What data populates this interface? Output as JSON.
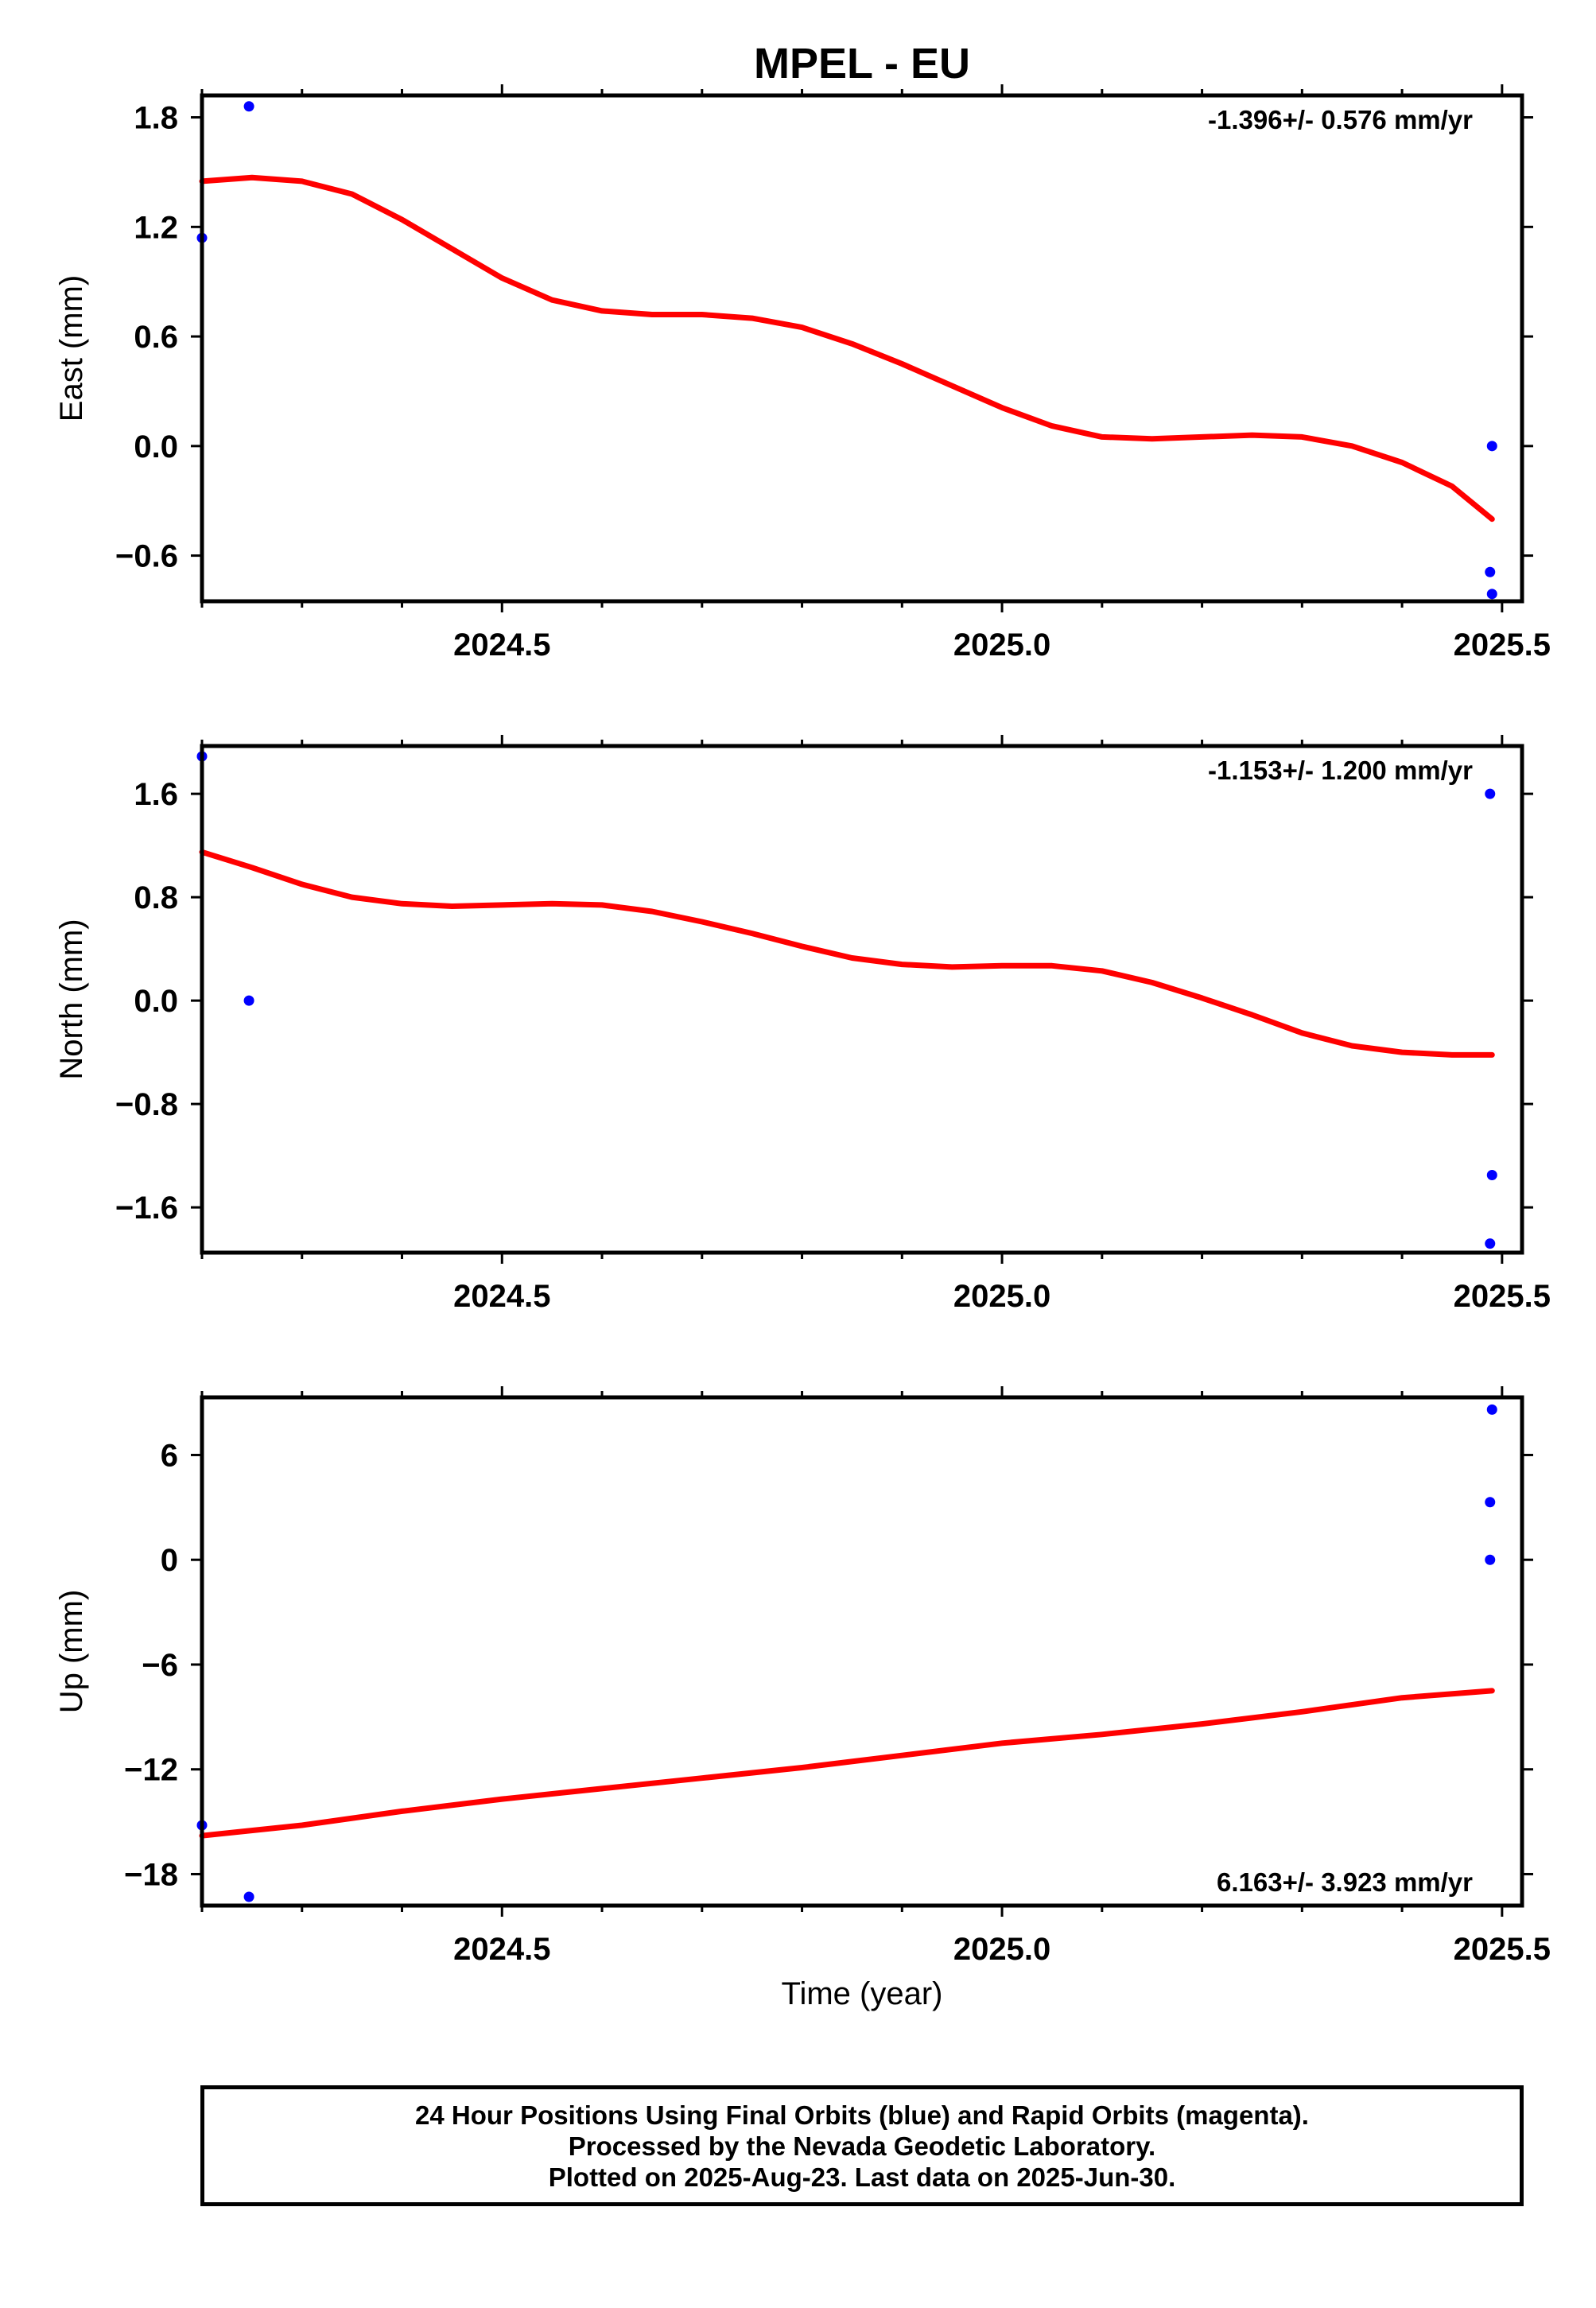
{
  "title": "MPEL - EU",
  "xlabel": "Time (year)",
  "colors": {
    "data": "#0000ff",
    "model": "#ff0000",
    "axis": "#000000"
  },
  "chart_data": [
    {
      "type": "scatter",
      "component": "East",
      "ylabel": "East (mm)",
      "rate_label": "-1.396+/- 0.576 mm/yr",
      "xlim": [
        2024.2,
        2025.52
      ],
      "ylim": [
        -0.85,
        1.92
      ],
      "x_ticks": [
        "2024.5",
        "2025.0",
        "2025.5"
      ],
      "y_ticks": [
        "1.8",
        "1.2",
        "0.6",
        "0.0",
        "−0.6"
      ],
      "points": [
        {
          "x": 2024.2,
          "y": 1.14
        },
        {
          "x": 2024.247,
          "y": 1.86
        },
        {
          "x": 2025.49,
          "y": 0.0
        },
        {
          "x": 2025.488,
          "y": -0.69
        },
        {
          "x": 2025.49,
          "y": -0.81
        }
      ],
      "model": [
        {
          "x": 2024.2,
          "y": 1.45
        },
        {
          "x": 2024.25,
          "y": 1.47
        },
        {
          "x": 2024.3,
          "y": 1.45
        },
        {
          "x": 2024.35,
          "y": 1.38
        },
        {
          "x": 2024.4,
          "y": 1.24
        },
        {
          "x": 2024.45,
          "y": 1.08
        },
        {
          "x": 2024.5,
          "y": 0.92
        },
        {
          "x": 2024.55,
          "y": 0.8
        },
        {
          "x": 2024.6,
          "y": 0.74
        },
        {
          "x": 2024.65,
          "y": 0.72
        },
        {
          "x": 2024.7,
          "y": 0.72
        },
        {
          "x": 2024.75,
          "y": 0.7
        },
        {
          "x": 2024.8,
          "y": 0.65
        },
        {
          "x": 2024.85,
          "y": 0.56
        },
        {
          "x": 2024.9,
          "y": 0.45
        },
        {
          "x": 2024.95,
          "y": 0.33
        },
        {
          "x": 2025.0,
          "y": 0.21
        },
        {
          "x": 2025.05,
          "y": 0.11
        },
        {
          "x": 2025.1,
          "y": 0.05
        },
        {
          "x": 2025.15,
          "y": 0.04
        },
        {
          "x": 2025.2,
          "y": 0.05
        },
        {
          "x": 2025.25,
          "y": 0.06
        },
        {
          "x": 2025.3,
          "y": 0.05
        },
        {
          "x": 2025.35,
          "y": 0.0
        },
        {
          "x": 2025.4,
          "y": -0.09
        },
        {
          "x": 2025.45,
          "y": -0.22
        },
        {
          "x": 2025.49,
          "y": -0.4
        }
      ]
    },
    {
      "type": "scatter",
      "component": "North",
      "ylabel": "North (mm)",
      "rate_label": "-1.153+/- 1.200 mm/yr",
      "xlim": [
        2024.2,
        2025.52
      ],
      "ylim": [
        -1.95,
        1.97
      ],
      "x_ticks": [
        "2024.5",
        "2025.0",
        "2025.5"
      ],
      "y_ticks": [
        "1.6",
        "0.8",
        "0.0",
        "−0.8",
        "−1.6"
      ],
      "points": [
        {
          "x": 2024.2,
          "y": 1.89
        },
        {
          "x": 2024.247,
          "y": 0.0
        },
        {
          "x": 2025.488,
          "y": 1.6
        },
        {
          "x": 2025.49,
          "y": -1.35
        },
        {
          "x": 2025.488,
          "y": -1.88
        }
      ],
      "model": [
        {
          "x": 2024.2,
          "y": 1.15
        },
        {
          "x": 2024.25,
          "y": 1.03
        },
        {
          "x": 2024.3,
          "y": 0.9
        },
        {
          "x": 2024.35,
          "y": 0.8
        },
        {
          "x": 2024.4,
          "y": 0.75
        },
        {
          "x": 2024.45,
          "y": 0.73
        },
        {
          "x": 2024.5,
          "y": 0.74
        },
        {
          "x": 2024.55,
          "y": 0.75
        },
        {
          "x": 2024.6,
          "y": 0.74
        },
        {
          "x": 2024.65,
          "y": 0.69
        },
        {
          "x": 2024.7,
          "y": 0.61
        },
        {
          "x": 2024.75,
          "y": 0.52
        },
        {
          "x": 2024.8,
          "y": 0.42
        },
        {
          "x": 2024.85,
          "y": 0.33
        },
        {
          "x": 2024.9,
          "y": 0.28
        },
        {
          "x": 2024.95,
          "y": 0.26
        },
        {
          "x": 2025.0,
          "y": 0.27
        },
        {
          "x": 2025.05,
          "y": 0.27
        },
        {
          "x": 2025.1,
          "y": 0.23
        },
        {
          "x": 2025.15,
          "y": 0.14
        },
        {
          "x": 2025.2,
          "y": 0.02
        },
        {
          "x": 2025.25,
          "y": -0.11
        },
        {
          "x": 2025.3,
          "y": -0.25
        },
        {
          "x": 2025.35,
          "y": -0.35
        },
        {
          "x": 2025.4,
          "y": -0.4
        },
        {
          "x": 2025.45,
          "y": -0.42
        },
        {
          "x": 2025.49,
          "y": -0.42
        }
      ]
    },
    {
      "type": "scatter",
      "component": "Up",
      "ylabel": "Up (mm)",
      "rate_label": "6.163+/- 3.923 mm/yr",
      "xlim": [
        2024.2,
        2025.52
      ],
      "ylim": [
        -19.8,
        9.3
      ],
      "x_ticks": [
        "2024.5",
        "2025.0",
        "2025.5"
      ],
      "y_ticks": [
        "6",
        "0",
        "−6",
        "−12",
        "−18"
      ],
      "points": [
        {
          "x": 2025.49,
          "y": 8.6
        },
        {
          "x": 2025.488,
          "y": 3.3
        },
        {
          "x": 2025.488,
          "y": 0.0
        },
        {
          "x": 2024.2,
          "y": -15.2
        },
        {
          "x": 2024.247,
          "y": -19.3
        }
      ],
      "model": [
        {
          "x": 2024.2,
          "y": -15.8
        },
        {
          "x": 2024.3,
          "y": -15.2
        },
        {
          "x": 2024.4,
          "y": -14.4
        },
        {
          "x": 2024.5,
          "y": -13.7
        },
        {
          "x": 2024.6,
          "y": -13.1
        },
        {
          "x": 2024.7,
          "y": -12.5
        },
        {
          "x": 2024.8,
          "y": -11.9
        },
        {
          "x": 2024.9,
          "y": -11.2
        },
        {
          "x": 2025.0,
          "y": -10.5
        },
        {
          "x": 2025.1,
          "y": -10.0
        },
        {
          "x": 2025.2,
          "y": -9.4
        },
        {
          "x": 2025.3,
          "y": -8.7
        },
        {
          "x": 2025.4,
          "y": -7.9
        },
        {
          "x": 2025.49,
          "y": -7.5
        }
      ]
    }
  ],
  "footer": {
    "line1": "24 Hour Positions Using Final Orbits (blue) and Rapid Orbits (magenta).",
    "line2": "Processed by the Nevada Geodetic Laboratory.",
    "line3": "Plotted on 2025-Aug-23. Last data on 2025-Jun-30."
  }
}
